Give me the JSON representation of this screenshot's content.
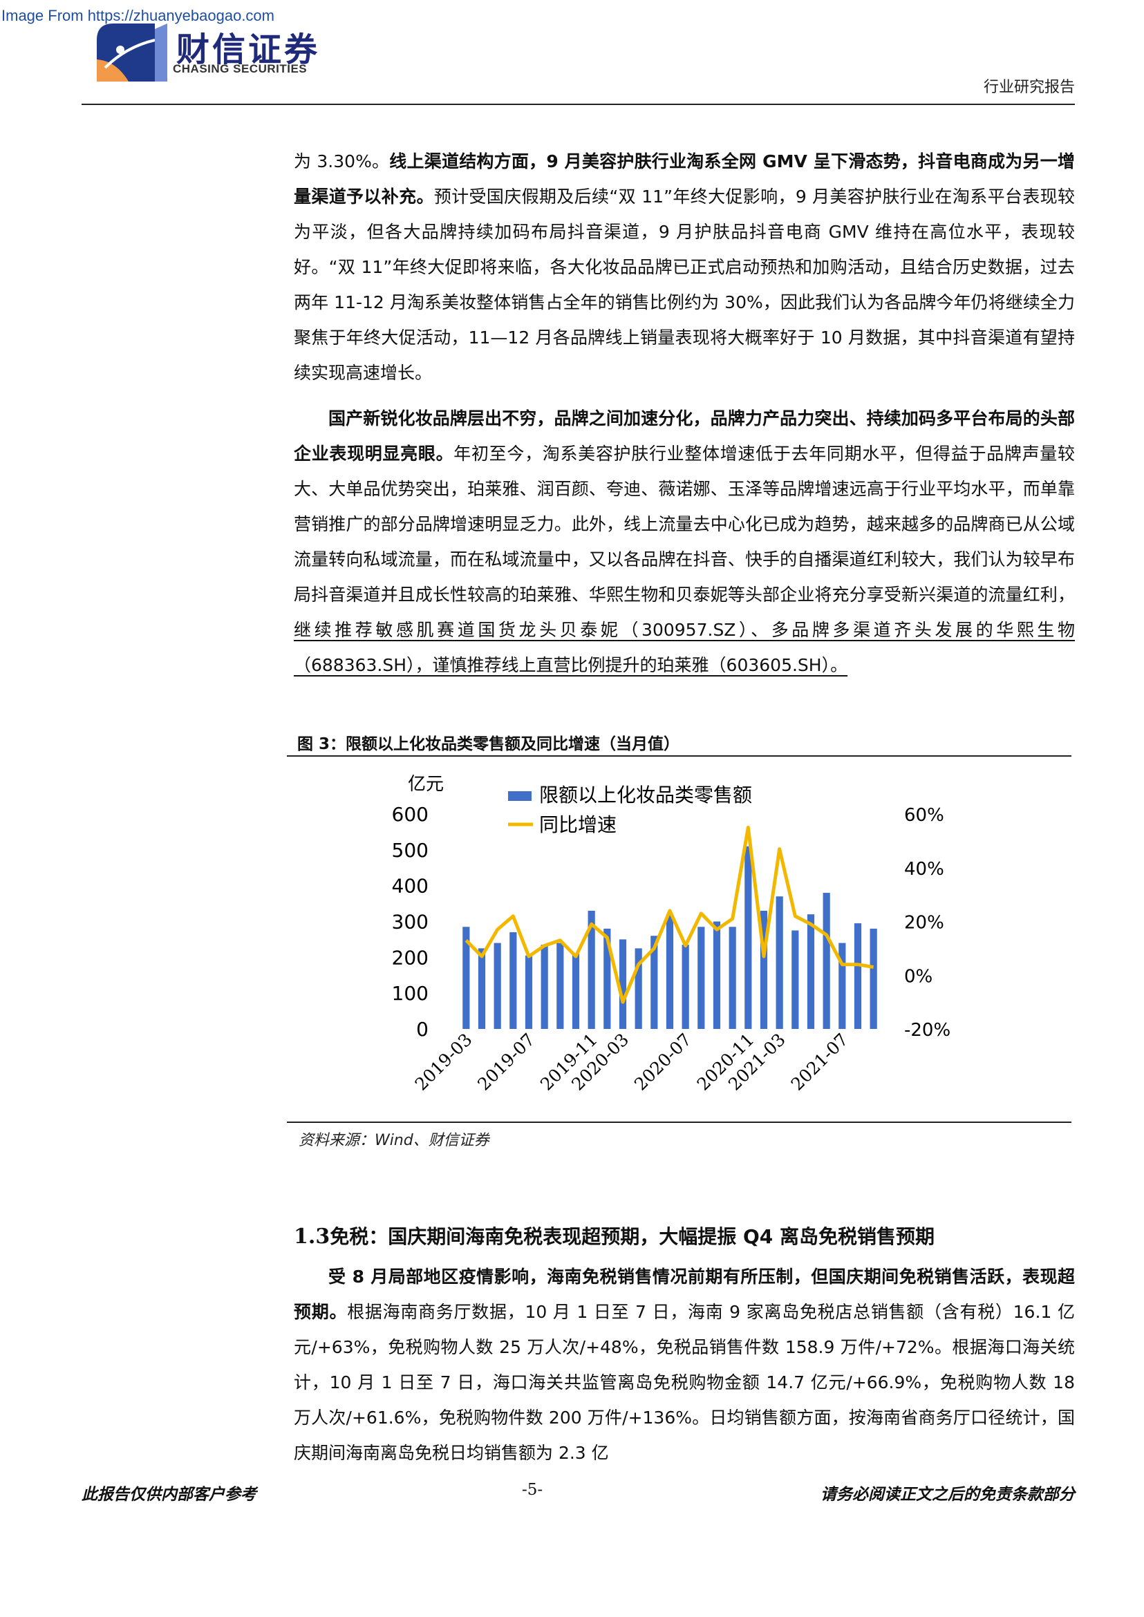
{
  "watermark": "Image From https://zhuanyebaogao.com",
  "brand": {
    "name_cn": "财信证券",
    "name_en": "CHASING SECURITIES"
  },
  "header": {
    "report_type": "行业研究报告"
  },
  "paragraphs": {
    "p1": {
      "t1": "为 3.30%。",
      "b1": "线上渠道结构方面，9 月美容护肤行业淘系全网 GMV 呈下滑态势，抖音电商成为另一增量渠道予以补充。",
      "t2": "预计受国庆假期及后续“双 11”年终大促影响，9 月美容护肤行业在淘系平台表现较为平淡，但各大品牌持续加码布局抖音渠道，9 月护肤品抖音电商 GMV 维持在高位水平，表现较好。“双 11”年终大促即将来临，各大化妆品品牌已正式启动预热和加购活动，且结合历史数据，过去两年 11-12 月淘系美妆整体销售占全年的销售比例约为 30%，因此我们认为各品牌今年仍将继续全力聚焦于年终大促活动，11—12 月各品牌线上销量表现将大概率好于 10 月数据，其中抖音渠道有望持续实现高速增长。"
    },
    "p2": {
      "b1": "国产新锐化妆品牌层出不穷，品牌之间加速分化，品牌力产品力突出、持续加码多平台布局的头部企业表现明显亮眼。",
      "t1": "年初至今，淘系美容护肤行业整体增速低于去年同期水平，但得益于品牌声量较大、大单品优势突出，珀莱雅、润百颜、夸迪、薇诺娜、玉泽等品牌增速远高于行业平均水平，而单靠营销推广的部分品牌增速明显乏力。此外，线上流量去中心化已成为趋势，越来越多的品牌商已从公域流量转向私域流量，而在私域流量中，又以各品牌在抖音、快手的自播渠道红利较大，我们认为较早布局抖音渠道并且成长性较高的珀莱雅、华熙生物和贝泰妮等头部企业将充分享受新兴渠道的流量红利，",
      "u1": "继续推荐敏感肌赛道国货龙头贝泰妮（300957.SZ）、多品牌多渠道齐头发展的华熙生物（688363.SH），谨慎推荐线上直营比例提升的珀莱雅（603605.SH）。"
    },
    "p3": {
      "b1": "受 8 月局部地区疫情影响，海南免税销售情况前期有所压制，但国庆期间免税销售活跃，表现超预期。",
      "t1": "根据海南商务厅数据，10 月 1 日至 7 日，海南 9 家离岛免税店总销售额（含有税）16.1 亿元/+63%，免税购物人数 25 万人次/+48%，免税品销售件数 158.9 万件/+72%。根据海口海关统计，10 月 1 日至 7 日，海口海关共监管离岛免税购物金额 14.7 亿元/+66.9%，免税购物人数 18 万人次/+61.6%，免税购物件数 200 万件/+136%。日均销售额方面，按海南省商务厅口径统计，国庆期间海南离岛免税日均销售额为 2.3 亿"
    }
  },
  "figure": {
    "title": "图 3：限额以上化妆品类零售额及同比增速（当月值）",
    "source": "资料来源：Wind、财信证券"
  },
  "section": {
    "num": "1.3",
    "title": "免税：国庆期间海南免税表现超预期，大幅提振 Q4 离岛免税销售预期"
  },
  "footer": {
    "left": "此报告仅供内部客户参考",
    "page": "-5-",
    "right": "请务必阅读正文之后的免责条款部分"
  },
  "chart_data": {
    "type": "bar",
    "ylabel": "亿元",
    "ylim": [
      0,
      600
    ],
    "y2lim": [
      -20,
      60
    ],
    "yticks": [
      "600",
      "500",
      "400",
      "300",
      "200",
      "100",
      "0"
    ],
    "y2ticks": [
      "60%",
      "40%",
      "20%",
      "0%",
      "-20%"
    ],
    "legend_position": "top-left",
    "x_tick_labels": [
      "2019-03",
      "2019-07",
      "2019-11",
      "2020-03",
      "2020-07",
      "2020-11",
      "2021-03",
      "2021-07"
    ],
    "series": [
      {
        "name": "限额以上化妆品类零售额",
        "type": "bar",
        "color": "#3f6fc8",
        "categories": [
          "2019-03",
          "2019-04",
          "2019-05",
          "2019-06",
          "2019-07",
          "2019-08",
          "2019-09",
          "2019-10",
          "2019-11",
          "2019-12",
          "2020-03",
          "2020-04",
          "2020-05",
          "2020-06",
          "2020-07",
          "2020-08",
          "2020-09",
          "2020-10",
          "2020-11",
          "2020-12",
          "2021-03",
          "2021-04",
          "2021-05",
          "2021-06",
          "2021-07",
          "2021-08",
          "2021-09"
        ],
        "values": [
          285,
          225,
          240,
          270,
          205,
          235,
          240,
          210,
          330,
          280,
          250,
          225,
          260,
          320,
          235,
          285,
          300,
          285,
          510,
          330,
          370,
          275,
          320,
          380,
          240,
          295,
          280
        ]
      },
      {
        "name": "同比增速",
        "type": "line",
        "color": "#f2b800",
        "values": [
          13,
          7,
          17,
          22,
          7,
          11,
          13,
          7,
          19,
          14,
          -10,
          4,
          10,
          24,
          11,
          23,
          17,
          21,
          55,
          7,
          47,
          22,
          19,
          15,
          4,
          4,
          3
        ]
      }
    ]
  }
}
